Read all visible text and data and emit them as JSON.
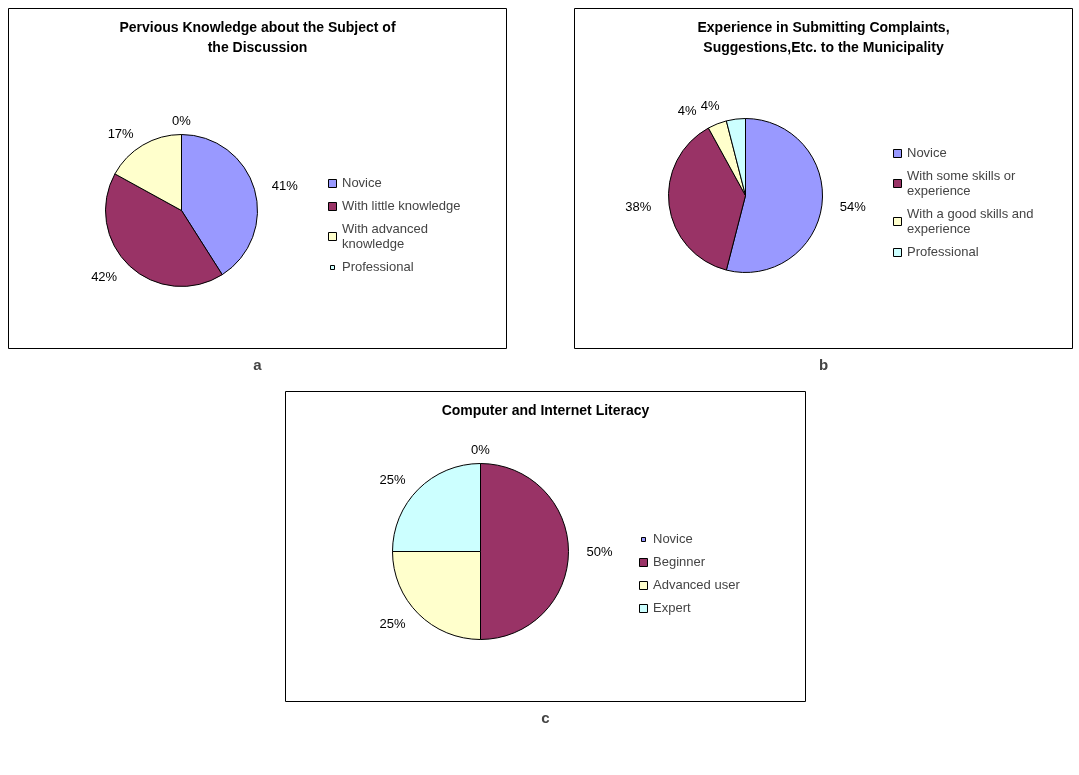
{
  "chart_data": [
    {
      "type": "pie",
      "title": "Pervious Knowledge about the Subject of the Discussion",
      "categories": [
        "Novice",
        "With little knowledge",
        "With advanced knowledge",
        "Professional"
      ],
      "values": [
        41,
        42,
        17,
        0
      ],
      "value_labels": [
        "41%",
        "42%",
        "17%",
        "0%"
      ],
      "colors": [
        "#9999ff",
        "#993366",
        "#ffffcc",
        "#ccffff"
      ],
      "legend": "right",
      "annotations": [
        "a"
      ]
    },
    {
      "type": "pie",
      "title": "Experience in Submitting Complaints, Suggestions,Etc. to the Municipality",
      "categories": [
        "Novice",
        "With some skills or experience",
        "With a good skills and experience",
        "Professional"
      ],
      "values": [
        54,
        38,
        4,
        4
      ],
      "value_labels": [
        "54%",
        "38%",
        "4%",
        "4%"
      ],
      "colors": [
        "#9999ff",
        "#993366",
        "#ffffcc",
        "#ccffff"
      ],
      "legend": "right",
      "annotations": [
        "b"
      ]
    },
    {
      "type": "pie",
      "title": "Computer and Internet Literacy",
      "categories": [
        "Novice",
        "Beginner",
        "Advanced user",
        "Expert"
      ],
      "values": [
        0,
        50,
        25,
        25
      ],
      "value_labels": [
        "0%",
        "50%",
        "25%",
        "25%"
      ],
      "colors": [
        "#9999ff",
        "#993366",
        "#ffffcc",
        "#ccffff"
      ],
      "legend": "right",
      "annotations": [
        "c"
      ]
    }
  ]
}
